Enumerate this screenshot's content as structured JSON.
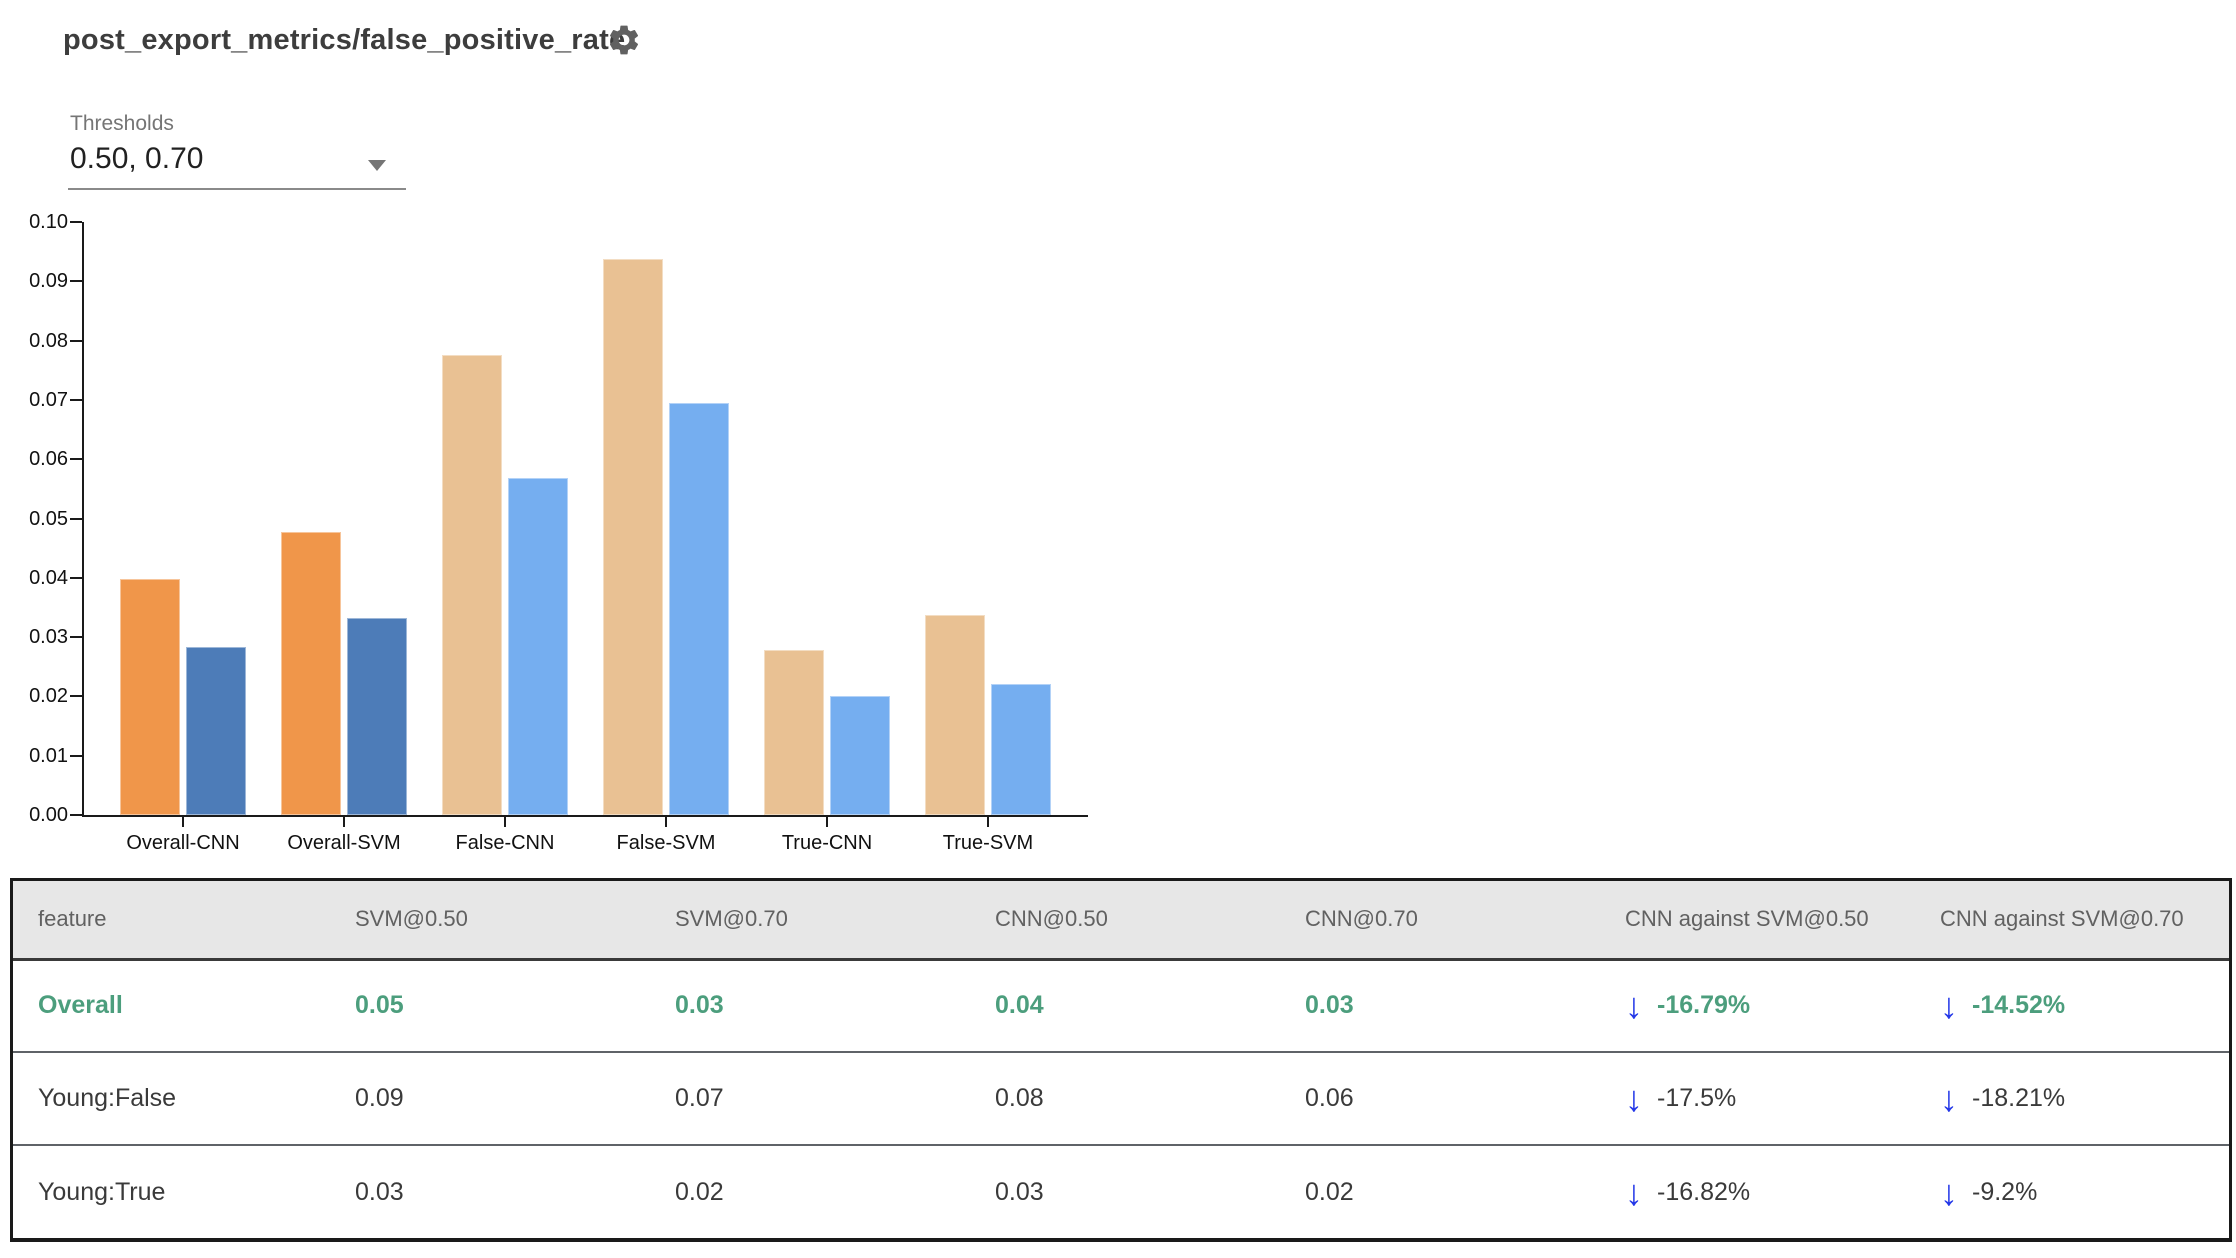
{
  "header": {
    "title": "post_export_metrics/false_positive_rate"
  },
  "thresholds": {
    "label": "Thresholds",
    "value": "0.50, 0.70"
  },
  "chart_data": {
    "type": "bar",
    "title": "",
    "xlabel": "",
    "ylabel": "",
    "categories": [
      "Overall-CNN",
      "Overall-SVM",
      "False-CNN",
      "False-SVM",
      "True-CNN",
      "True-SVM"
    ],
    "series": [
      {
        "name": "threshold 0.50",
        "values": [
          0.0398,
          0.0478,
          0.0775,
          0.0938,
          0.0279,
          0.0337
        ],
        "colors": [
          "#F0964A",
          "#F0964A",
          "#E9C193",
          "#E9C193",
          "#E9C193",
          "#E9C193"
        ]
      },
      {
        "name": "threshold 0.70",
        "values": [
          0.0283,
          0.0332,
          0.0568,
          0.0695,
          0.0201,
          0.0221
        ],
        "colors": [
          "#4D7CB8",
          "#4D7CB8",
          "#75AEF0",
          "#75AEF0",
          "#75AEF0",
          "#75AEF0"
        ]
      }
    ],
    "ylim": [
      0,
      0.1
    ],
    "yticks": [
      "0.10",
      "0.09",
      "0.08",
      "0.07",
      "0.06",
      "0.05",
      "0.04",
      "0.03",
      "0.02",
      "0.01",
      "0.00"
    ],
    "grid": false,
    "legend_position": "none"
  },
  "table": {
    "headers": [
      "feature",
      "SVM@0.50",
      "SVM@0.70",
      "CNN@0.50",
      "CNN@0.70",
      "CNN against SVM@0.50",
      "CNN against SVM@0.70"
    ],
    "rows": [
      {
        "feature": "Overall",
        "svm50": "0.05",
        "svm70": "0.03",
        "cnn50": "0.04",
        "cnn70": "0.03",
        "vs50": "-16.79%",
        "vs70": "-14.52%"
      },
      {
        "feature": "Young:False",
        "svm50": "0.09",
        "svm70": "0.07",
        "cnn50": "0.08",
        "cnn70": "0.06",
        "vs50": "-17.5%",
        "vs70": "-18.21%"
      },
      {
        "feature": "Young:True",
        "svm50": "0.03",
        "svm70": "0.02",
        "cnn50": "0.03",
        "cnn70": "0.02",
        "vs50": "-16.82%",
        "vs70": "-9.2%"
      }
    ]
  },
  "icons": {
    "down_arrow": "↓"
  },
  "colors": {
    "highlight_green": "#4c9e7d",
    "arrow_blue": "#2438e8",
    "header_bg": "#e7e7e7",
    "header_text": "#616161",
    "axis": "#1a1a1a"
  }
}
